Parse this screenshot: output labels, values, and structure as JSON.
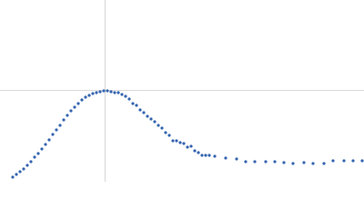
{
  "chart_data": {
    "type": "scatter",
    "color": "#3565b0",
    "xlim": [
      0,
      6
    ],
    "ylim": [
      0,
      2.2
    ],
    "reference_lines": {
      "x": 1.732,
      "y": 1.104
    },
    "x": [
      0.21,
      0.27,
      0.33,
      0.39,
      0.45,
      0.51,
      0.57,
      0.63,
      0.69,
      0.75,
      0.81,
      0.87,
      0.93,
      0.99,
      1.05,
      1.11,
      1.17,
      1.23,
      1.29,
      1.35,
      1.41,
      1.47,
      1.53,
      1.59,
      1.65,
      1.71,
      1.77,
      1.83,
      1.89,
      1.95,
      2.01,
      2.07,
      2.13,
      2.19,
      2.25,
      2.31,
      2.37,
      2.43,
      2.49,
      2.55,
      2.61,
      2.67,
      2.73,
      2.79,
      2.85,
      2.91,
      2.97,
      3.03,
      3.09,
      3.15,
      3.21,
      3.27,
      3.33,
      3.39,
      3.45,
      3.54,
      3.72,
      3.9,
      4.05,
      4.2,
      4.38,
      4.53,
      4.68,
      4.83,
      5.01,
      5.16,
      5.34,
      5.49,
      5.67,
      5.82,
      5.97
    ],
    "values": [
      0.055,
      0.088,
      0.121,
      0.154,
      0.198,
      0.242,
      0.297,
      0.341,
      0.396,
      0.451,
      0.506,
      0.572,
      0.627,
      0.682,
      0.748,
      0.803,
      0.858,
      0.902,
      0.946,
      0.99,
      1.023,
      1.045,
      1.067,
      1.078,
      1.089,
      1.1,
      1.1,
      1.089,
      1.078,
      1.078,
      1.056,
      1.034,
      1.001,
      0.946,
      0.924,
      0.869,
      0.836,
      0.792,
      0.759,
      0.726,
      0.682,
      0.649,
      0.594,
      0.561,
      0.495,
      0.495,
      0.473,
      0.462,
      0.418,
      0.429,
      0.374,
      0.352,
      0.319,
      0.319,
      0.319,
      0.308,
      0.286,
      0.275,
      0.242,
      0.242,
      0.242,
      0.242,
      0.231,
      0.22,
      0.231,
      0.22,
      0.22,
      0.253,
      0.253,
      0.253,
      0.253
    ]
  }
}
